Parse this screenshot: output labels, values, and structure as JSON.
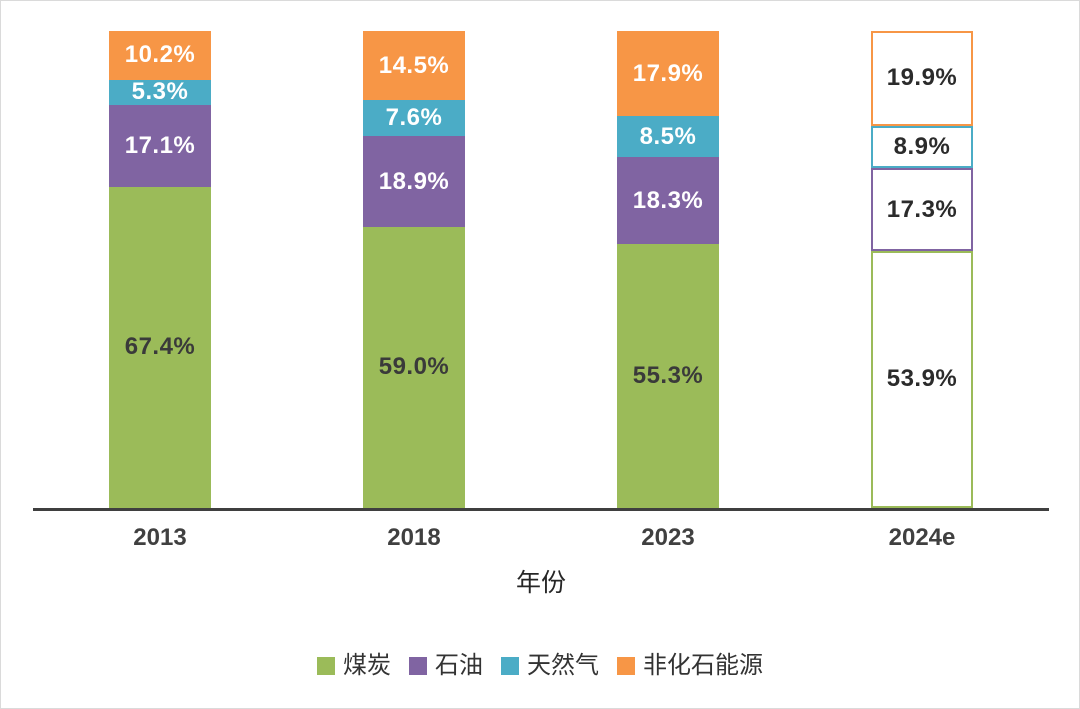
{
  "chart_data": {
    "type": "bar",
    "stacked": true,
    "unit": "%",
    "title": "",
    "xlabel": "年份",
    "ylabel": "",
    "ylim": [
      0,
      100
    ],
    "grid": false,
    "legend_position": "bottom",
    "categories": [
      "2013",
      "2018",
      "2023",
      "2024e"
    ],
    "forecast_categories": [
      "2024e"
    ],
    "forecast_label_color": "#2b2b2b",
    "axis_color": "#3f3f3f",
    "series": [
      {
        "name": "煤炭",
        "color": "#9bbb59",
        "label_color": "#3a3a3a",
        "values": [
          67.4,
          59.0,
          55.3,
          53.9
        ],
        "labels": [
          "67.4%",
          "59.0%",
          "55.3%",
          "53.9%"
        ]
      },
      {
        "name": "石油",
        "color": "#8064a2",
        "label_color": "#ffffff",
        "values": [
          17.1,
          18.9,
          18.3,
          17.3
        ],
        "labels": [
          "17.1%",
          "18.9%",
          "18.3%",
          "17.3%"
        ]
      },
      {
        "name": "天然气",
        "color": "#4bacc6",
        "label_color": "#ffffff",
        "values": [
          5.3,
          7.6,
          8.5,
          8.9
        ],
        "labels": [
          "5.3%",
          "7.6%",
          "8.5%",
          "8.9%"
        ]
      },
      {
        "name": "非化石能源",
        "color": "#f79646",
        "label_color": "#ffffff",
        "values": [
          10.2,
          14.5,
          17.9,
          19.9
        ],
        "labels": [
          "10.2%",
          "14.5%",
          "17.9%",
          "19.9%"
        ]
      }
    ]
  }
}
